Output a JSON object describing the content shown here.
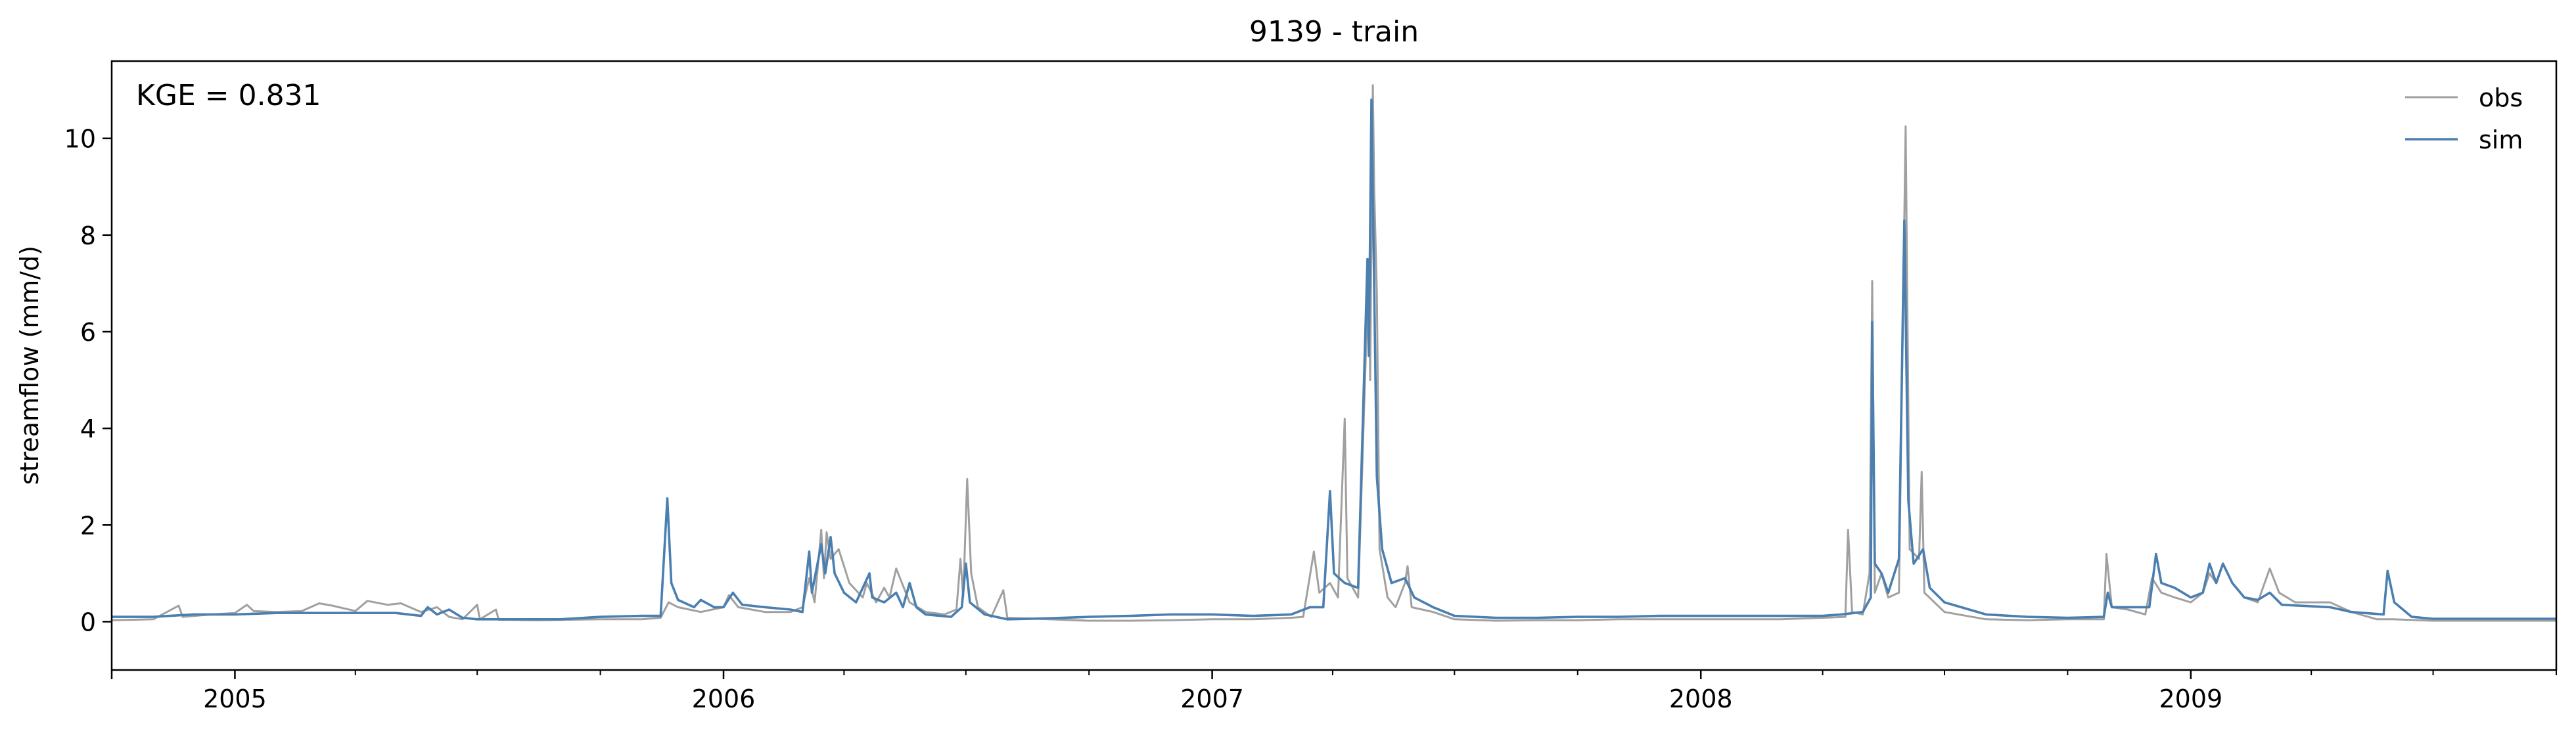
{
  "chart_data": {
    "type": "line",
    "title": "9139 - train",
    "xlabel": "",
    "ylabel": "streamflow (mm/d)",
    "annotation": "KGE = 0.831",
    "x_domain": [
      "2004-10-01",
      "2009-10-01"
    ],
    "xlim": [
      "2004-10-01",
      "2009-10-01"
    ],
    "ylim": [
      -1,
      11.6
    ],
    "x_ticks": [
      {
        "label": "2005",
        "date": "2005-01-01"
      },
      {
        "label": "2006",
        "date": "2006-01-01"
      },
      {
        "label": "2007",
        "date": "2007-01-01"
      },
      {
        "label": "2008",
        "date": "2008-01-01"
      },
      {
        "label": "2009",
        "date": "2009-01-01"
      }
    ],
    "y_ticks": [
      0,
      2,
      4,
      6,
      8,
      10
    ],
    "grid": false,
    "legend_position": "upper right",
    "series": [
      {
        "name": "obs",
        "color": "#a0a0a0",
        "points": [
          [
            "2004-10-01",
            0.03
          ],
          [
            "2004-11-01",
            0.05
          ],
          [
            "2004-11-20",
            0.33
          ],
          [
            "2004-11-23",
            0.1
          ],
          [
            "2004-12-15",
            0.15
          ],
          [
            "2005-01-01",
            0.18
          ],
          [
            "2005-01-10",
            0.35
          ],
          [
            "2005-01-15",
            0.22
          ],
          [
            "2005-02-01",
            0.2
          ],
          [
            "2005-02-20",
            0.22
          ],
          [
            "2005-03-05",
            0.38
          ],
          [
            "2005-03-15",
            0.33
          ],
          [
            "2005-04-01",
            0.22
          ],
          [
            "2005-04-10",
            0.43
          ],
          [
            "2005-04-25",
            0.35
          ],
          [
            "2005-05-05",
            0.38
          ],
          [
            "2005-05-20",
            0.2
          ],
          [
            "2005-06-01",
            0.3
          ],
          [
            "2005-06-10",
            0.1
          ],
          [
            "2005-06-20",
            0.05
          ],
          [
            "2005-07-01",
            0.35
          ],
          [
            "2005-07-03",
            0.05
          ],
          [
            "2005-07-15",
            0.25
          ],
          [
            "2005-07-17",
            0.04
          ],
          [
            "2005-08-15",
            0.03
          ],
          [
            "2005-10-01",
            0.05
          ],
          [
            "2005-11-01",
            0.05
          ],
          [
            "2005-11-15",
            0.08
          ],
          [
            "2005-11-21",
            0.4
          ],
          [
            "2005-11-28",
            0.3
          ],
          [
            "2005-12-15",
            0.2
          ],
          [
            "2006-01-01",
            0.3
          ],
          [
            "2006-01-05",
            0.55
          ],
          [
            "2006-01-12",
            0.3
          ],
          [
            "2006-02-01",
            0.2
          ],
          [
            "2006-02-20",
            0.2
          ],
          [
            "2006-03-01",
            0.3
          ],
          [
            "2006-03-06",
            0.9
          ],
          [
            "2006-03-10",
            0.4
          ],
          [
            "2006-03-15",
            1.9
          ],
          [
            "2006-03-17",
            0.9
          ],
          [
            "2006-03-19",
            1.85
          ],
          [
            "2006-03-22",
            1.3
          ],
          [
            "2006-03-28",
            1.5
          ],
          [
            "2006-04-05",
            0.8
          ],
          [
            "2006-04-15",
            0.5
          ],
          [
            "2006-04-18",
            0.8
          ],
          [
            "2006-04-25",
            0.4
          ],
          [
            "2006-05-01",
            0.7
          ],
          [
            "2006-05-05",
            0.5
          ],
          [
            "2006-05-10",
            1.1
          ],
          [
            "2006-05-20",
            0.4
          ],
          [
            "2006-06-01",
            0.2
          ],
          [
            "2006-06-15",
            0.15
          ],
          [
            "2006-06-24",
            0.25
          ],
          [
            "2006-06-27",
            1.3
          ],
          [
            "2006-06-29",
            0.5
          ],
          [
            "2006-07-02",
            2.95
          ],
          [
            "2006-07-05",
            1.0
          ],
          [
            "2006-07-10",
            0.3
          ],
          [
            "2006-07-20",
            0.1
          ],
          [
            "2006-07-29",
            0.65
          ],
          [
            "2006-08-01",
            0.08
          ],
          [
            "2006-09-01",
            0.05
          ],
          [
            "2006-10-01",
            0.02
          ],
          [
            "2006-11-01",
            0.02
          ],
          [
            "2006-12-01",
            0.03
          ],
          [
            "2007-01-01",
            0.05
          ],
          [
            "2007-02-01",
            0.05
          ],
          [
            "2007-03-01",
            0.08
          ],
          [
            "2007-03-10",
            0.1
          ],
          [
            "2007-03-18",
            1.45
          ],
          [
            "2007-03-22",
            0.6
          ],
          [
            "2007-03-30",
            0.8
          ],
          [
            "2007-04-05",
            0.5
          ],
          [
            "2007-04-10",
            4.2
          ],
          [
            "2007-04-12",
            0.9
          ],
          [
            "2007-04-20",
            0.5
          ],
          [
            "2007-04-28",
            7.5
          ],
          [
            "2007-04-29",
            5.0
          ],
          [
            "2007-05-01",
            11.1
          ],
          [
            "2007-05-02",
            9.0
          ],
          [
            "2007-05-04",
            6.8
          ],
          [
            "2007-05-06",
            1.5
          ],
          [
            "2007-05-12",
            0.5
          ],
          [
            "2007-05-18",
            0.3
          ],
          [
            "2007-05-25",
            0.8
          ],
          [
            "2007-05-27",
            1.15
          ],
          [
            "2007-05-30",
            0.3
          ],
          [
            "2007-06-15",
            0.2
          ],
          [
            "2007-07-01",
            0.05
          ],
          [
            "2007-08-01",
            0.02
          ],
          [
            "2007-09-01",
            0.03
          ],
          [
            "2007-10-01",
            0.03
          ],
          [
            "2007-11-01",
            0.05
          ],
          [
            "2007-12-01",
            0.05
          ],
          [
            "2008-01-01",
            0.05
          ],
          [
            "2008-02-01",
            0.05
          ],
          [
            "2008-03-01",
            0.05
          ],
          [
            "2008-04-01",
            0.08
          ],
          [
            "2008-04-18",
            0.1
          ],
          [
            "2008-04-20",
            1.9
          ],
          [
            "2008-04-23",
            0.2
          ],
          [
            "2008-05-01",
            0.15
          ],
          [
            "2008-05-06",
            1.0
          ],
          [
            "2008-05-08",
            7.05
          ],
          [
            "2008-05-10",
            0.6
          ],
          [
            "2008-05-15",
            1.0
          ],
          [
            "2008-05-20",
            0.5
          ],
          [
            "2008-05-28",
            0.6
          ],
          [
            "2008-06-02",
            10.25
          ],
          [
            "2008-06-05",
            1.5
          ],
          [
            "2008-06-12",
            1.3
          ],
          [
            "2008-06-14",
            3.1
          ],
          [
            "2008-06-16",
            0.6
          ],
          [
            "2008-07-01",
            0.2
          ],
          [
            "2008-08-01",
            0.05
          ],
          [
            "2008-09-01",
            0.03
          ],
          [
            "2008-10-01",
            0.05
          ],
          [
            "2008-10-28",
            0.05
          ],
          [
            "2008-10-30",
            1.4
          ],
          [
            "2008-11-03",
            0.3
          ],
          [
            "2008-11-15",
            0.25
          ],
          [
            "2008-11-28",
            0.15
          ],
          [
            "2008-12-03",
            0.9
          ],
          [
            "2008-12-10",
            0.6
          ],
          [
            "2008-12-20",
            0.5
          ],
          [
            "2009-01-01",
            0.4
          ],
          [
            "2009-01-10",
            0.6
          ],
          [
            "2009-01-15",
            1.0
          ],
          [
            "2009-01-20",
            0.8
          ],
          [
            "2009-01-25",
            1.2
          ],
          [
            "2009-02-01",
            0.8
          ],
          [
            "2009-02-10",
            0.5
          ],
          [
            "2009-02-20",
            0.4
          ],
          [
            "2009-03-01",
            1.1
          ],
          [
            "2009-03-08",
            0.6
          ],
          [
            "2009-03-20",
            0.4
          ],
          [
            "2009-04-15",
            0.4
          ],
          [
            "2009-05-01",
            0.2
          ],
          [
            "2009-05-20",
            0.05
          ],
          [
            "2009-06-01",
            0.05
          ],
          [
            "2009-07-01",
            0.02
          ],
          [
            "2009-08-01",
            0.02
          ],
          [
            "2009-10-01",
            0.02
          ]
        ]
      },
      {
        "name": "sim",
        "color": "#4a7fb0",
        "points": [
          [
            "2004-10-01",
            0.1
          ],
          [
            "2004-11-01",
            0.1
          ],
          [
            "2004-12-01",
            0.15
          ],
          [
            "2005-01-01",
            0.15
          ],
          [
            "2005-02-01",
            0.18
          ],
          [
            "2005-03-01",
            0.18
          ],
          [
            "2005-04-01",
            0.18
          ],
          [
            "2005-05-01",
            0.18
          ],
          [
            "2005-05-20",
            0.12
          ],
          [
            "2005-05-25",
            0.3
          ],
          [
            "2005-06-01",
            0.15
          ],
          [
            "2005-06-10",
            0.25
          ],
          [
            "2005-06-20",
            0.08
          ],
          [
            "2005-07-01",
            0.05
          ],
          [
            "2005-08-01",
            0.05
          ],
          [
            "2005-09-01",
            0.05
          ],
          [
            "2005-10-01",
            0.1
          ],
          [
            "2005-11-01",
            0.12
          ],
          [
            "2005-11-15",
            0.12
          ],
          [
            "2005-11-20",
            2.55
          ],
          [
            "2005-11-23",
            0.8
          ],
          [
            "2005-11-28",
            0.45
          ],
          [
            "2005-12-10",
            0.3
          ],
          [
            "2005-12-15",
            0.45
          ],
          [
            "2005-12-25",
            0.3
          ],
          [
            "2006-01-01",
            0.3
          ],
          [
            "2006-01-08",
            0.6
          ],
          [
            "2006-01-15",
            0.35
          ],
          [
            "2006-02-01",
            0.3
          ],
          [
            "2006-02-20",
            0.25
          ],
          [
            "2006-03-01",
            0.2
          ],
          [
            "2006-03-06",
            1.45
          ],
          [
            "2006-03-08",
            0.6
          ],
          [
            "2006-03-15",
            1.6
          ],
          [
            "2006-03-18",
            1.0
          ],
          [
            "2006-03-22",
            1.75
          ],
          [
            "2006-03-25",
            1.0
          ],
          [
            "2006-04-01",
            0.6
          ],
          [
            "2006-04-10",
            0.4
          ],
          [
            "2006-04-20",
            1.0
          ],
          [
            "2006-04-22",
            0.5
          ],
          [
            "2006-05-01",
            0.4
          ],
          [
            "2006-05-10",
            0.6
          ],
          [
            "2006-05-15",
            0.3
          ],
          [
            "2006-05-20",
            0.8
          ],
          [
            "2006-05-25",
            0.3
          ],
          [
            "2006-06-01",
            0.15
          ],
          [
            "2006-06-20",
            0.1
          ],
          [
            "2006-06-28",
            0.3
          ],
          [
            "2006-07-01",
            1.2
          ],
          [
            "2006-07-04",
            0.4
          ],
          [
            "2006-07-15",
            0.15
          ],
          [
            "2006-08-01",
            0.05
          ],
          [
            "2006-09-01",
            0.07
          ],
          [
            "2006-10-01",
            0.1
          ],
          [
            "2006-11-01",
            0.12
          ],
          [
            "2006-12-01",
            0.15
          ],
          [
            "2007-01-01",
            0.15
          ],
          [
            "2007-02-01",
            0.12
          ],
          [
            "2007-03-01",
            0.15
          ],
          [
            "2007-03-15",
            0.3
          ],
          [
            "2007-03-25",
            0.3
          ],
          [
            "2007-03-30",
            2.7
          ],
          [
            "2007-04-02",
            1.0
          ],
          [
            "2007-04-10",
            0.8
          ],
          [
            "2007-04-20",
            0.7
          ],
          [
            "2007-04-27",
            7.5
          ],
          [
            "2007-04-28",
            5.5
          ],
          [
            "2007-04-30",
            10.8
          ],
          [
            "2007-05-02",
            7.0
          ],
          [
            "2007-05-04",
            3.0
          ],
          [
            "2007-05-08",
            1.5
          ],
          [
            "2007-05-15",
            0.8
          ],
          [
            "2007-05-25",
            0.9
          ],
          [
            "2007-06-01",
            0.5
          ],
          [
            "2007-06-15",
            0.3
          ],
          [
            "2007-07-01",
            0.12
          ],
          [
            "2007-08-01",
            0.08
          ],
          [
            "2007-09-01",
            0.08
          ],
          [
            "2007-10-01",
            0.1
          ],
          [
            "2007-11-01",
            0.1
          ],
          [
            "2007-12-01",
            0.12
          ],
          [
            "2008-01-01",
            0.12
          ],
          [
            "2008-02-01",
            0.12
          ],
          [
            "2008-03-01",
            0.12
          ],
          [
            "2008-04-01",
            0.12
          ],
          [
            "2008-04-15",
            0.15
          ],
          [
            "2008-05-01",
            0.2
          ],
          [
            "2008-05-07",
            0.5
          ],
          [
            "2008-05-08",
            6.2
          ],
          [
            "2008-05-10",
            1.2
          ],
          [
            "2008-05-15",
            1.0
          ],
          [
            "2008-05-20",
            0.6
          ],
          [
            "2008-05-28",
            1.3
          ],
          [
            "2008-06-01",
            8.3
          ],
          [
            "2008-06-04",
            2.5
          ],
          [
            "2008-06-08",
            1.2
          ],
          [
            "2008-06-15",
            1.5
          ],
          [
            "2008-06-20",
            0.7
          ],
          [
            "2008-07-01",
            0.4
          ],
          [
            "2008-08-01",
            0.15
          ],
          [
            "2008-09-01",
            0.1
          ],
          [
            "2008-10-01",
            0.08
          ],
          [
            "2008-10-28",
            0.1
          ],
          [
            "2008-10-31",
            0.6
          ],
          [
            "2008-11-03",
            0.3
          ],
          [
            "2008-11-20",
            0.3
          ],
          [
            "2008-12-01",
            0.3
          ],
          [
            "2008-12-06",
            1.4
          ],
          [
            "2008-12-10",
            0.8
          ],
          [
            "2008-12-20",
            0.7
          ],
          [
            "2009-01-01",
            0.5
          ],
          [
            "2009-01-10",
            0.6
          ],
          [
            "2009-01-15",
            1.2
          ],
          [
            "2009-01-20",
            0.8
          ],
          [
            "2009-01-25",
            1.2
          ],
          [
            "2009-02-01",
            0.8
          ],
          [
            "2009-02-10",
            0.5
          ],
          [
            "2009-02-20",
            0.45
          ],
          [
            "2009-03-01",
            0.6
          ],
          [
            "2009-03-10",
            0.35
          ],
          [
            "2009-04-15",
            0.3
          ],
          [
            "2009-05-01",
            0.2
          ],
          [
            "2009-05-25",
            0.15
          ],
          [
            "2009-05-28",
            1.05
          ],
          [
            "2009-06-02",
            0.4
          ],
          [
            "2009-06-15",
            0.1
          ],
          [
            "2009-07-01",
            0.06
          ],
          [
            "2009-08-01",
            0.06
          ],
          [
            "2009-10-01",
            0.06
          ]
        ]
      }
    ]
  }
}
